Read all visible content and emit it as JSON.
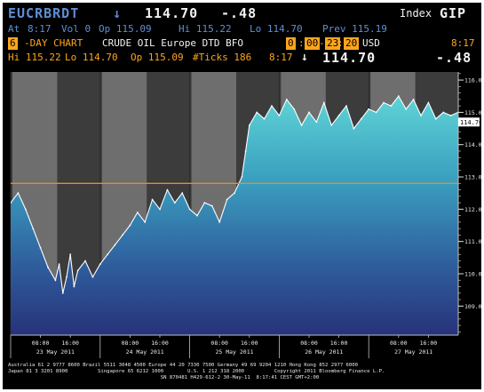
{
  "header": {
    "ticker": "EUCRBRDT",
    "arrow": "↓",
    "price": "114.70",
    "change": "-.48",
    "index_label": "Index",
    "index_code": "GIP"
  },
  "stats": {
    "at": "At",
    "time": "8:17",
    "volume": "Vol 0",
    "open": "Op 115.09",
    "high": "Hi 115.22",
    "low": "Lo 114.70",
    "prev": "Prev 115.19"
  },
  "desc": {
    "days": "6",
    "chart_type": "-DAY CHART",
    "security": "CRUDE OIL Europe DTD BFO",
    "start_hour": "0",
    "start_min": "00",
    "end_hour": "23",
    "end_min": "20",
    "colon": ":",
    "dash": "-",
    "currency": "USD",
    "time": "8:17"
  },
  "range": {
    "high": "Hi 115.22",
    "low": "Lo 114.70",
    "open": "Op 115.09",
    "ticks": "#Ticks 186",
    "time": "8:17",
    "arrow": "↓",
    "last": "114.70",
    "change": "-.48"
  },
  "footer": {
    "line1": "Australia 61 2 9777 8600 Brazil 5511 3048 4500 Europe 44 20 7330 7500 Germany 49 69 9204 1210 Hong Kong 852 2977 6000",
    "line2": "Japan 81 3 3201 8900          Singapore 65 6212 1000        U.S. 1 212 318 2000          Copyright 2011 Bloomberg Finance L.P.",
    "line3": "                                                   SN 870481 H429-612-2 30-May-11  8:17:41 CEST GMT+2:00"
  },
  "colors": {
    "background": "#000000",
    "session_shade": "#6e6e6e",
    "offhours_shade": "#3c3c3c",
    "area_top": "#5fd4d6",
    "area_bottom": "#27327a",
    "price_line": "#ffffff",
    "reference_line": "#e0902a",
    "last_price_tag": "#ffffff"
  },
  "chart_data": {
    "type": "area",
    "title": "",
    "xlabel": "",
    "ylabel": "",
    "ylim": [
      108.1,
      116.25
    ],
    "y_ticks": [
      109.0,
      110.0,
      111.0,
      112.0,
      113.0,
      114.0,
      115.0,
      116.0
    ],
    "y_tick_labels": [
      "109.00",
      "110.00",
      "111.00",
      "112.00",
      "113.00",
      "114.00",
      "115.00",
      "116.00"
    ],
    "x_range_days": [
      "23 May 2011",
      "27 May 2011 23:59"
    ],
    "x_ticks": [
      {
        "day": "23 May 2011",
        "times": [
          "08:00",
          "16:00"
        ]
      },
      {
        "day": "24 May 2011",
        "times": [
          "08:00",
          "16:00"
        ]
      },
      {
        "day": "25 May 2011",
        "times": [
          "08:00",
          "16:00"
        ]
      },
      {
        "day": "26 May 2011",
        "times": [
          "08:00",
          "16:00"
        ]
      },
      {
        "day": "27 May 2011",
        "times": [
          "08:00",
          "16:00"
        ]
      }
    ],
    "reference_line": 112.8,
    "last_price_label": "114.70",
    "last_price": 114.7,
    "grid": false,
    "legend": "none",
    "series": [
      {
        "values": [
          [
            "2011-05-23 00:00",
            112.2
          ],
          [
            "2011-05-23 02:00",
            112.5
          ],
          [
            "2011-05-23 04:00",
            112.0
          ],
          [
            "2011-05-23 06:00",
            111.4
          ],
          [
            "2011-05-23 08:00",
            110.8
          ],
          [
            "2011-05-23 10:00",
            110.2
          ],
          [
            "2011-05-23 12:00",
            109.8
          ],
          [
            "2011-05-23 13:00",
            110.3
          ],
          [
            "2011-05-23 14:00",
            109.4
          ],
          [
            "2011-05-23 15:00",
            109.9
          ],
          [
            "2011-05-23 16:00",
            110.6
          ],
          [
            "2011-05-23 17:00",
            109.6
          ],
          [
            "2011-05-23 18:00",
            110.1
          ],
          [
            "2011-05-23 20:00",
            110.4
          ],
          [
            "2011-05-23 22:00",
            109.9
          ],
          [
            "2011-05-24 00:00",
            110.3
          ],
          [
            "2011-05-24 02:00",
            110.6
          ],
          [
            "2011-05-24 04:00",
            110.9
          ],
          [
            "2011-05-24 06:00",
            111.2
          ],
          [
            "2011-05-24 08:00",
            111.5
          ],
          [
            "2011-05-24 10:00",
            111.9
          ],
          [
            "2011-05-24 12:00",
            111.6
          ],
          [
            "2011-05-24 14:00",
            112.3
          ],
          [
            "2011-05-24 16:00",
            112.0
          ],
          [
            "2011-05-24 18:00",
            112.6
          ],
          [
            "2011-05-24 20:00",
            112.2
          ],
          [
            "2011-05-24 22:00",
            112.5
          ],
          [
            "2011-05-25 00:00",
            112.0
          ],
          [
            "2011-05-25 02:00",
            111.8
          ],
          [
            "2011-05-25 04:00",
            112.2
          ],
          [
            "2011-05-25 06:00",
            112.1
          ],
          [
            "2011-05-25 08:00",
            111.6
          ],
          [
            "2011-05-25 10:00",
            112.3
          ],
          [
            "2011-05-25 12:00",
            112.5
          ],
          [
            "2011-05-25 14:00",
            113.0
          ],
          [
            "2011-05-25 15:00",
            113.8
          ],
          [
            "2011-05-25 16:00",
            114.6
          ],
          [
            "2011-05-25 18:00",
            115.0
          ],
          [
            "2011-05-25 20:00",
            114.8
          ],
          [
            "2011-05-25 22:00",
            115.2
          ],
          [
            "2011-05-26 00:00",
            114.9
          ],
          [
            "2011-05-26 02:00",
            115.4
          ],
          [
            "2011-05-26 04:00",
            115.1
          ],
          [
            "2011-05-26 06:00",
            114.6
          ],
          [
            "2011-05-26 08:00",
            115.0
          ],
          [
            "2011-05-26 10:00",
            114.7
          ],
          [
            "2011-05-26 12:00",
            115.3
          ],
          [
            "2011-05-26 14:00",
            114.6
          ],
          [
            "2011-05-26 16:00",
            114.9
          ],
          [
            "2011-05-26 18:00",
            115.2
          ],
          [
            "2011-05-26 20:00",
            114.5
          ],
          [
            "2011-05-26 22:00",
            114.8
          ],
          [
            "2011-05-27 00:00",
            115.1
          ],
          [
            "2011-05-27 02:00",
            115.0
          ],
          [
            "2011-05-27 04:00",
            115.3
          ],
          [
            "2011-05-27 06:00",
            115.2
          ],
          [
            "2011-05-27 08:00",
            115.5
          ],
          [
            "2011-05-27 10:00",
            115.1
          ],
          [
            "2011-05-27 12:00",
            115.4
          ],
          [
            "2011-05-27 14:00",
            114.9
          ],
          [
            "2011-05-27 16:00",
            115.3
          ],
          [
            "2011-05-27 18:00",
            114.8
          ],
          [
            "2011-05-27 20:00",
            115.0
          ],
          [
            "2011-05-27 22:00",
            114.9
          ],
          [
            "2011-05-27 23:59",
            115.0
          ]
        ]
      }
    ]
  }
}
